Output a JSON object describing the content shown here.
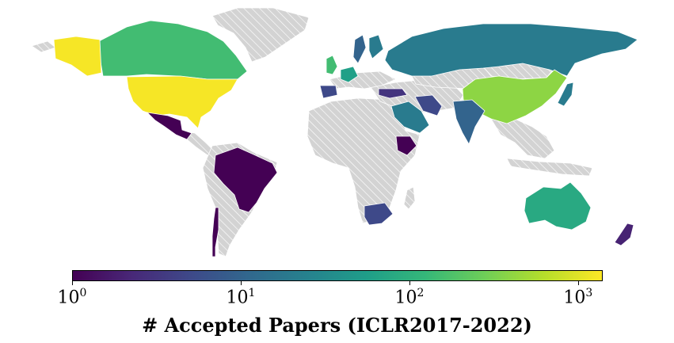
{
  "colorbar": {
    "title": "# Accepted Papers (ICLR2017-2022)",
    "scale": "log",
    "range": [
      1,
      1400
    ],
    "colormap": "viridis",
    "ticks": [
      {
        "base": "10",
        "exp": "0",
        "value": 1
      },
      {
        "base": "10",
        "exp": "1",
        "value": 10
      },
      {
        "base": "10",
        "exp": "2",
        "value": 100
      },
      {
        "base": "10",
        "exp": "3",
        "value": 1000
      }
    ]
  },
  "map": {
    "no_data_style": "light gray with white diagonal hatching",
    "regions": [
      {
        "name": "United States",
        "value": 1300
      },
      {
        "name": "Canada",
        "value": 150
      },
      {
        "name": "Greenland",
        "value": null
      },
      {
        "name": "Mexico",
        "value": 1
      },
      {
        "name": "Brazil",
        "value": 1
      },
      {
        "name": "Chile",
        "value": 1
      },
      {
        "name": "China",
        "value": 400
      },
      {
        "name": "Russia",
        "value": 20
      },
      {
        "name": "Japan",
        "value": 20
      },
      {
        "name": "India",
        "value": 10
      },
      {
        "name": "Saudi Arabia",
        "value": 20
      },
      {
        "name": "Iran",
        "value": 5
      },
      {
        "name": "Turkey",
        "value": 3
      },
      {
        "name": "Ethiopia",
        "value": 1
      },
      {
        "name": "South Africa",
        "value": 5
      },
      {
        "name": "Australia",
        "value": 80
      },
      {
        "name": "New Zealand",
        "value": 2
      },
      {
        "name": "United Kingdom",
        "value": 150
      },
      {
        "name": "Germany",
        "value": 60
      },
      {
        "name": "Spain",
        "value": 5
      },
      {
        "name": "Sweden",
        "value": 10
      },
      {
        "name": "Finland",
        "value": 20
      }
    ]
  }
}
